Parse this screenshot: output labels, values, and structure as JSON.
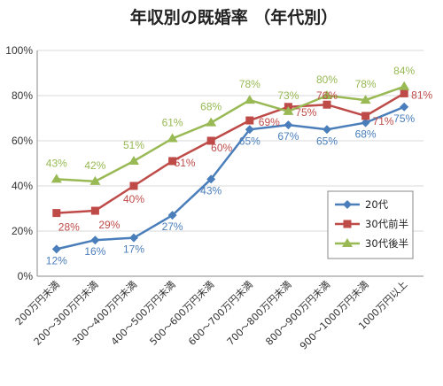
{
  "chart_data": {
    "type": "line",
    "title": "年収別の既婚率 （年代別）",
    "categories": [
      "200万円未満",
      "200～300万円未満",
      "300～400万円未満",
      "400～500万円未満",
      "500～600万円未満",
      "600～700万円未満",
      "700～800万円未満",
      "800～900万円未満",
      "900～1000万円未満",
      "1000万円以上"
    ],
    "y_ticks": [
      "0%",
      "20%",
      "40%",
      "60%",
      "80%",
      "100%"
    ],
    "ylim": [
      0,
      100
    ],
    "grid": true,
    "legend_position": "right",
    "series": [
      {
        "name": "20代",
        "color": "#4a7ebb",
        "marker": "diamond",
        "values": [
          12,
          16,
          17,
          27,
          43,
          65,
          67,
          65,
          68,
          75
        ],
        "labels": [
          "12%",
          "16%",
          "17%",
          "27%",
          "43%",
          "65%",
          "67%",
          "65%",
          "68%",
          "75%"
        ]
      },
      {
        "name": "30代前半",
        "color": "#be4b48",
        "marker": "square",
        "values": [
          28,
          29,
          40,
          51,
          60,
          69,
          75,
          76,
          71,
          81
        ],
        "labels": [
          "28%",
          "29%",
          "40%",
          "51%",
          "60%",
          "69%",
          "75%",
          "76%",
          "71%",
          "81%"
        ]
      },
      {
        "name": "30代後半",
        "color": "#98b954",
        "marker": "triangle",
        "values": [
          43,
          42,
          51,
          61,
          68,
          78,
          73,
          80,
          78,
          84
        ],
        "labels": [
          "43%",
          "42%",
          "51%",
          "61%",
          "68%",
          "78%",
          "73%",
          "80%",
          "78%",
          "84%"
        ]
      }
    ]
  }
}
